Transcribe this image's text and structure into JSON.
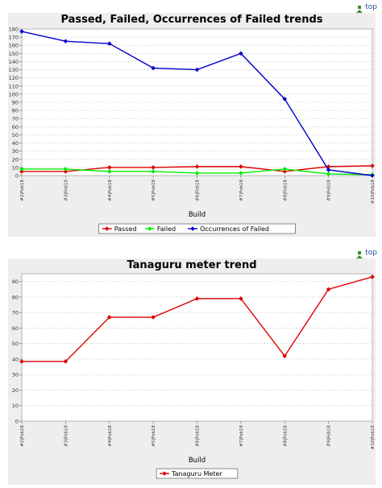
{
  "top_link_label": "top",
  "chart_data": [
    {
      "type": "line",
      "title": "Passed, Failed, Occurrences of Failed trends",
      "xlabel": "Build",
      "ylabel": "",
      "categories": [
        "#2|Feb18",
        "#3|Feb18",
        "#4|Feb18",
        "#5|Feb18",
        "#6|Feb18",
        "#7|Feb18",
        "#8|Feb18",
        "#9|Feb18",
        "#10|Feb18"
      ],
      "ylim": [
        0,
        180
      ],
      "yticks": [
        0,
        10,
        20,
        30,
        40,
        50,
        60,
        70,
        80,
        90,
        100,
        110,
        120,
        130,
        140,
        150,
        160,
        170,
        180
      ],
      "grid": true,
      "legend_position": "bottom",
      "series": [
        {
          "name": "Passed",
          "color": "#dd0000",
          "values": [
            5,
            5,
            10,
            10,
            11,
            11,
            5,
            11,
            12
          ]
        },
        {
          "name": "Failed",
          "color": "#00ee00",
          "values": [
            8,
            8,
            5,
            5,
            3,
            3,
            8,
            2,
            1
          ]
        },
        {
          "name": "Occurrences of Failed",
          "color": "#0000cc",
          "values": [
            177,
            165,
            162,
            132,
            130,
            150,
            94,
            7,
            0
          ]
        }
      ]
    },
    {
      "type": "line",
      "title": "Tanaguru meter trend",
      "xlabel": "Build",
      "ylabel": "",
      "categories": [
        "#2|Feb18",
        "#3|Feb18",
        "#4|Feb18",
        "#5|Feb18",
        "#6|Feb18",
        "#7|Feb18",
        "#8|Feb18",
        "#9|Feb18",
        "#10|Feb18"
      ],
      "ylim": [
        0,
        95
      ],
      "yticks": [
        0,
        10,
        20,
        30,
        40,
        50,
        60,
        70,
        80,
        90
      ],
      "grid": true,
      "legend_position": "bottom",
      "series": [
        {
          "name": "Tanaguru Meter",
          "color": "#dd0000",
          "values": [
            38.5,
            38.5,
            67,
            67,
            79,
            79,
            42,
            85,
            93
          ]
        }
      ]
    }
  ]
}
